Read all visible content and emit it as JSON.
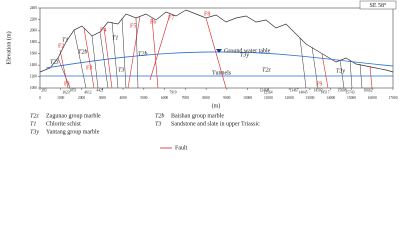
{
  "header": {
    "direction": "SE 58°"
  },
  "axes": {
    "y_label": "Elevation (m)",
    "y_ticks": [
      2400,
      2200,
      2000,
      1800,
      1600,
      1400,
      1200,
      1000
    ],
    "x_label": "(m)",
    "x_ticks": [
      0,
      1000,
      2000,
      3000,
      4000,
      5000,
      6000,
      7000,
      8000,
      9000,
      10000,
      11000,
      12000,
      13000,
      14000,
      15000,
      16000,
      17000
    ]
  },
  "section": {
    "ground_water": "Ground water table",
    "tunnels": "Tunnels",
    "formations": [
      "T2z",
      "T1",
      "T2b",
      "T3",
      "T1",
      "T2b",
      "T3y",
      "T2z",
      "T3y"
    ],
    "faults": [
      "F1",
      "F2",
      "F3",
      "F4",
      "F5",
      "F6",
      "F7",
      "F8",
      "F9"
    ],
    "chainages": [
      "283",
      "3623",
      "3851",
      "4612",
      "4421",
      "7919",
      "12468",
      "12564",
      "13467",
      "14045",
      "14503",
      "14517",
      "15608",
      "15743",
      "16662"
    ]
  },
  "legend": {
    "items": [
      {
        "symbol": "T2z",
        "label": "Zagunao group marble"
      },
      {
        "symbol": "T1",
        "label": "Chlorite schist"
      },
      {
        "symbol": "T3y",
        "label": "Yantang group marble"
      },
      {
        "symbol": "T2b",
        "label": "Baishan group marble"
      },
      {
        "symbol": "T3",
        "label": "Sandstone and slate in upper Triassic"
      },
      {
        "symbol": "",
        "label": "Fault"
      }
    ]
  }
}
